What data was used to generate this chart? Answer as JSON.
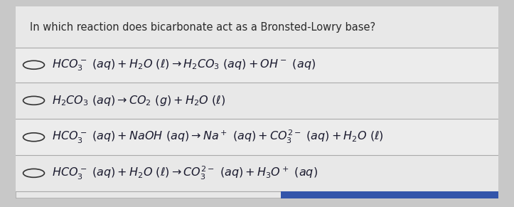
{
  "title": "In which reaction does bicarbonate act as a Bronsted-Lowry base?",
  "options_math": [
    "$HCO_3^-\\ (aq) + H_2O\\ (\\ell) \\rightarrow H_2CO_3\\ (aq) + OH^-\\ (aq)$",
    "$H_2CO_3\\ (aq) \\rightarrow CO_2\\ (g) + H_2O\\ (\\ell)$",
    "$HCO_3^-\\ (aq) + NaOH\\ (aq) \\rightarrow Na^+\\ (aq) + CO_3^{2-}\\ (aq) + H_2O\\ (\\ell)$",
    "$HCO_3^-\\ (aq) + H_2O\\ (\\ell) \\rightarrow CO_3^{2-}\\ (aq) + H_3O^+\\ (aq)$"
  ],
  "outer_bg": "#c8c8c8",
  "panel_bg": "#e8e8e8",
  "row_bg": "#e0e0e0",
  "white_row": "#f5f5f5",
  "border_color": "#aaaaaa",
  "text_color": "#1a1a2e",
  "title_color": "#2a2a2a",
  "radio_color": "#333333",
  "bottom_bar_color": "#3355aa",
  "font_size": 11.5,
  "title_font_size": 10.5,
  "figw": 7.23,
  "figh": 2.91,
  "dpi": 100
}
